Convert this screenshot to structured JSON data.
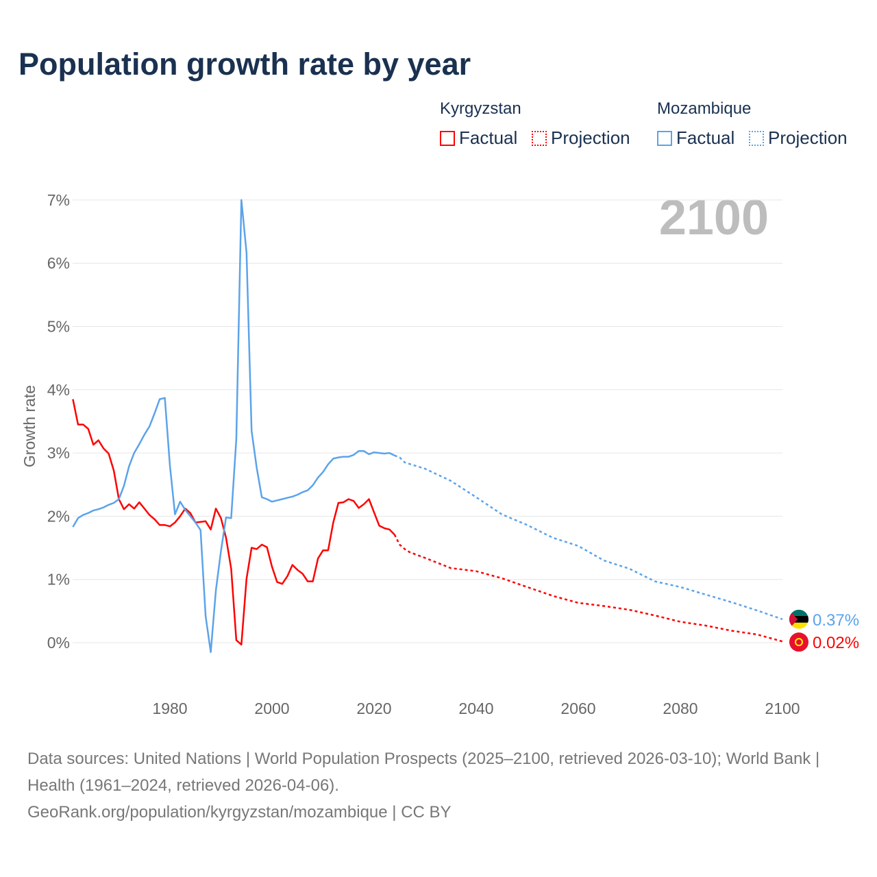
{
  "title": "Population growth rate by year",
  "legend": {
    "groups": [
      {
        "country": "Kyrgyzstan",
        "factual": "Factual",
        "projection": "Projection",
        "color": "#ff0000"
      },
      {
        "country": "Mozambique",
        "factual": "Factual",
        "projection": "Projection",
        "color": "#5ba3ea"
      }
    ]
  },
  "year_label": "2100",
  "footer": {
    "line1": "Data sources: United Nations | World Population Prospects (2025–2100, retrieved 2026-03-10); World Bank | Health (1961–2024, retrieved 2026-04-06).",
    "line2": "GeoRank.org/population/kyrgyzstan/mozambique | CC BY"
  },
  "chart_data": {
    "type": "line",
    "title": "Population growth rate by year",
    "xlabel": "",
    "ylabel": "Growth rate",
    "xlim": [
      1961,
      2100
    ],
    "ylim": [
      -0.8,
      7.0
    ],
    "x_ticks": [
      1980,
      2000,
      2020,
      2040,
      2060,
      2080,
      2100
    ],
    "y_ticks": [
      0,
      1,
      2,
      3,
      4,
      5,
      6,
      7
    ],
    "y_tick_labels": [
      "0%",
      "1%",
      "2%",
      "3%",
      "4%",
      "5%",
      "6%",
      "7%"
    ],
    "grid": true,
    "legend_position": "top-right",
    "series": [
      {
        "name": "Kyrgyzstan",
        "color": "#ff0000",
        "end_label": "0.02%",
        "factual": {
          "x": [
            1961,
            1962,
            1963,
            1964,
            1965,
            1966,
            1967,
            1968,
            1969,
            1970,
            1971,
            1972,
            1973,
            1974,
            1975,
            1976,
            1977,
            1978,
            1979,
            1980,
            1981,
            1982,
            1983,
            1984,
            1985,
            1986,
            1987,
            1988,
            1989,
            1990,
            1991,
            1992,
            1993,
            1994,
            1995,
            1996,
            1997,
            1998,
            1999,
            2000,
            2001,
            2002,
            2003,
            2004,
            2005,
            2006,
            2007,
            2008,
            2009,
            2010,
            2011,
            2012,
            2013,
            2014,
            2015,
            2016,
            2017,
            2018,
            2019,
            2020,
            2021,
            2022,
            2023,
            2024
          ],
          "y": [
            3.85,
            3.45,
            3.45,
            3.38,
            3.13,
            3.2,
            3.07,
            2.99,
            2.72,
            2.27,
            2.11,
            2.19,
            2.12,
            2.22,
            2.12,
            2.02,
            1.95,
            1.86,
            1.86,
            1.84,
            1.9,
            2.0,
            2.12,
            2.05,
            1.9,
            1.91,
            1.92,
            1.79,
            2.12,
            1.97,
            1.66,
            1.17,
            0.04,
            -0.03,
            1.01,
            1.5,
            1.48,
            1.55,
            1.51,
            1.2,
            0.96,
            0.93,
            1.05,
            1.23,
            1.15,
            1.09,
            0.97,
            0.97,
            1.33,
            1.46,
            1.46,
            1.9,
            2.21,
            2.22,
            2.27,
            2.24,
            2.13,
            2.19,
            2.27,
            2.06,
            1.85,
            1.81,
            1.79,
            1.71
          ]
        },
        "projection": {
          "x": [
            2024,
            2025,
            2026,
            2027,
            2028,
            2030,
            2035,
            2040,
            2045,
            2050,
            2055,
            2060,
            2065,
            2070,
            2075,
            2080,
            2085,
            2090,
            2095,
            2100
          ],
          "y": [
            1.71,
            1.55,
            1.48,
            1.43,
            1.4,
            1.34,
            1.18,
            1.13,
            1.02,
            0.88,
            0.74,
            0.63,
            0.58,
            0.52,
            0.43,
            0.33,
            0.27,
            0.19,
            0.13,
            0.02
          ]
        }
      },
      {
        "name": "Mozambique",
        "color": "#5ba3ea",
        "end_label": "0.37%",
        "factual": {
          "x": [
            1961,
            1962,
            1963,
            1964,
            1965,
            1966,
            1967,
            1968,
            1969,
            1970,
            1971,
            1972,
            1973,
            1974,
            1975,
            1976,
            1977,
            1978,
            1979,
            1980,
            1981,
            1982,
            1983,
            1984,
            1985,
            1986,
            1987,
            1988,
            1989,
            1990,
            1991,
            1992,
            1993,
            1994,
            1995,
            1996,
            1997,
            1998,
            1999,
            2000,
            2001,
            2002,
            2003,
            2004,
            2005,
            2006,
            2007,
            2008,
            2009,
            2010,
            2011,
            2012,
            2013,
            2014,
            2015,
            2016,
            2017,
            2018,
            2019,
            2020,
            2021,
            2022,
            2023,
            2024
          ],
          "y": [
            1.83,
            1.97,
            2.02,
            2.05,
            2.09,
            2.11,
            2.14,
            2.18,
            2.21,
            2.27,
            2.48,
            2.79,
            3.0,
            3.14,
            3.29,
            3.42,
            3.63,
            3.85,
            3.87,
            2.8,
            2.03,
            2.23,
            2.1,
            2.0,
            1.9,
            1.78,
            0.42,
            -0.15,
            0.83,
            1.45,
            1.98,
            1.97,
            3.22,
            7.0,
            6.17,
            3.35,
            2.77,
            2.3,
            2.27,
            2.23,
            2.25,
            2.27,
            2.29,
            2.31,
            2.34,
            2.38,
            2.41,
            2.49,
            2.61,
            2.7,
            2.82,
            2.91,
            2.93,
            2.94,
            2.94,
            2.97,
            3.03,
            3.03,
            2.98,
            3.01,
            3.0,
            2.99,
            3.0,
            2.96
          ]
        },
        "projection": {
          "x": [
            2024,
            2025,
            2026,
            2030,
            2035,
            2040,
            2045,
            2050,
            2055,
            2060,
            2065,
            2070,
            2075,
            2080,
            2085,
            2090,
            2095,
            2100
          ],
          "y": [
            2.96,
            2.93,
            2.85,
            2.75,
            2.56,
            2.3,
            2.03,
            1.86,
            1.66,
            1.53,
            1.3,
            1.17,
            0.97,
            0.88,
            0.76,
            0.64,
            0.51,
            0.37
          ]
        }
      }
    ]
  }
}
